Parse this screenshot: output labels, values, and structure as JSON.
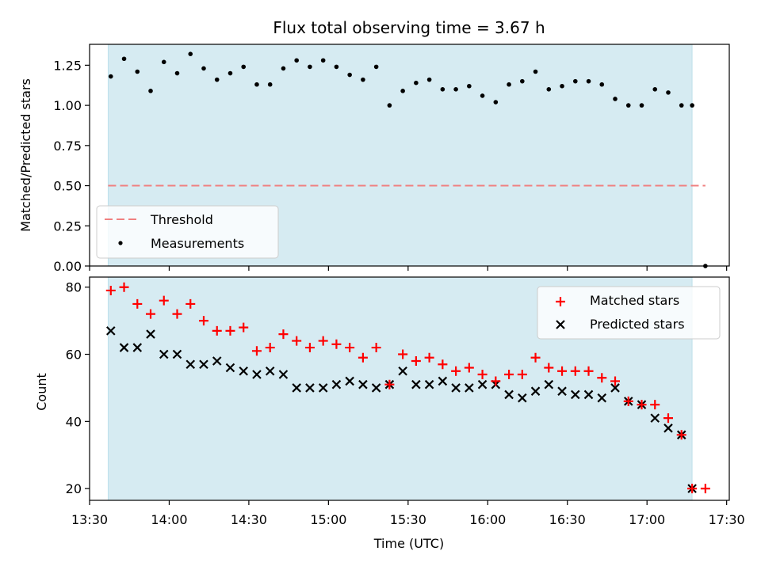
{
  "chart_data": [
    {
      "type": "scatter",
      "title": "Flux total observing time = 3.67 h",
      "xlabel": "",
      "ylabel": "Matched/Predicted stars",
      "xlim_minutes": [
        810,
        1051
      ],
      "ylim": [
        0,
        1.38
      ],
      "yticks": [
        0.0,
        0.25,
        0.5,
        0.75,
        1.0,
        1.25
      ],
      "ytick_labels": [
        "0.00",
        "0.25",
        "0.50",
        "0.75",
        "1.00",
        "1.25"
      ],
      "shaded_span_minutes": [
        817,
        1037
      ],
      "threshold": {
        "name": "Threshold",
        "value": 0.5,
        "x_range_minutes": [
          817,
          1042
        ],
        "color": "#f08080"
      },
      "legend_position": "lower-left",
      "series": [
        {
          "name": "Measurements",
          "x_minutes": [
            818,
            823,
            828,
            833,
            838,
            843,
            848,
            853,
            858,
            863,
            868,
            873,
            878,
            883,
            888,
            893,
            898,
            903,
            908,
            913,
            918,
            923,
            928,
            933,
            938,
            943,
            948,
            953,
            958,
            963,
            968,
            973,
            978,
            983,
            988,
            993,
            998,
            1003,
            1008,
            1013,
            1018,
            1023,
            1028,
            1033,
            1037,
            1042
          ],
          "values": [
            1.18,
            1.29,
            1.21,
            1.09,
            1.27,
            1.2,
            1.32,
            1.23,
            1.16,
            1.2,
            1.24,
            1.13,
            1.13,
            1.23,
            1.28,
            1.24,
            1.28,
            1.24,
            1.19,
            1.16,
            1.24,
            1.0,
            1.09,
            1.14,
            1.16,
            1.1,
            1.1,
            1.12,
            1.06,
            1.02,
            1.13,
            1.15,
            1.21,
            1.1,
            1.12,
            1.15,
            1.15,
            1.13,
            1.04,
            1.0,
            1.0,
            1.1,
            1.08,
            1.0,
            1.0,
            0.0
          ]
        }
      ]
    },
    {
      "type": "scatter",
      "title": "",
      "xlabel": "Time (UTC)",
      "ylabel": "Count",
      "xlim_minutes": [
        810,
        1051
      ],
      "ylim": [
        16.5,
        83
      ],
      "yticks": [
        20,
        40,
        60,
        80
      ],
      "ytick_labels": [
        "20",
        "40",
        "60",
        "80"
      ],
      "xticks_minutes": [
        810,
        840,
        870,
        900,
        930,
        960,
        990,
        1020,
        1050
      ],
      "xtick_labels": [
        "13:30",
        "14:00",
        "14:30",
        "15:00",
        "15:30",
        "16:00",
        "16:30",
        "17:00",
        "17:30"
      ],
      "shaded_span_minutes": [
        817,
        1037
      ],
      "legend_position": "upper-right",
      "series": [
        {
          "name": "Matched stars",
          "marker": "plus",
          "color": "#ff0000",
          "x_minutes": [
            818,
            823,
            828,
            833,
            838,
            843,
            848,
            853,
            858,
            863,
            868,
            873,
            878,
            883,
            888,
            893,
            898,
            903,
            908,
            913,
            918,
            923,
            928,
            933,
            938,
            943,
            948,
            953,
            958,
            963,
            968,
            973,
            978,
            983,
            988,
            993,
            998,
            1003,
            1008,
            1013,
            1018,
            1023,
            1028,
            1033,
            1037,
            1042
          ],
          "values": [
            79,
            80,
            75,
            72,
            76,
            72,
            75,
            70,
            67,
            67,
            68,
            61,
            62,
            66,
            64,
            62,
            64,
            63,
            62,
            59,
            62,
            51,
            60,
            58,
            59,
            57,
            55,
            56,
            54,
            52,
            54,
            54,
            59,
            56,
            55,
            55,
            55,
            53,
            52,
            46,
            45,
            45,
            41,
            36,
            20,
            20
          ]
        },
        {
          "name": "Predicted stars",
          "marker": "x",
          "color": "#000000",
          "x_minutes": [
            818,
            823,
            828,
            833,
            838,
            843,
            848,
            853,
            858,
            863,
            868,
            873,
            878,
            883,
            888,
            893,
            898,
            903,
            908,
            913,
            918,
            923,
            928,
            933,
            938,
            943,
            948,
            953,
            958,
            963,
            968,
            973,
            978,
            983,
            988,
            993,
            998,
            1003,
            1008,
            1013,
            1018,
            1023,
            1028,
            1033,
            1037
          ],
          "values": [
            67,
            62,
            62,
            66,
            60,
            60,
            57,
            57,
            58,
            56,
            55,
            54,
            55,
            54,
            50,
            50,
            50,
            51,
            52,
            51,
            50,
            51,
            55,
            51,
            51,
            52,
            50,
            50,
            51,
            51,
            48,
            47,
            49,
            51,
            49,
            48,
            48,
            47,
            50,
            46,
            45,
            41,
            38,
            36,
            20
          ]
        }
      ]
    }
  ]
}
